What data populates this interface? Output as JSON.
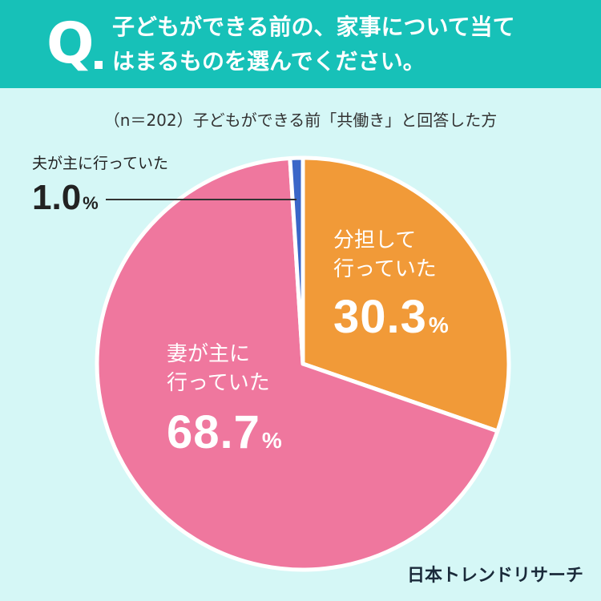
{
  "header": {
    "q_mark": "Q",
    "question_line1": "子どもができる前の、家事について当て",
    "question_line2": "はまるものを選んでください。"
  },
  "subtitle": "（n＝202）子どもができる前「共働き」と回答した方",
  "logo": "日本トレンドリサーチ",
  "colors": {
    "header_bg": "#17c1b8",
    "page_bg": "#d5f7f6",
    "slice_husband": "#3a66c8",
    "slice_shared": "#f19a38",
    "slice_wife": "#ef779e"
  },
  "chart_data": {
    "type": "pie",
    "title": "",
    "start_angle_deg": 0,
    "direction": "clockwise",
    "slices": [
      {
        "label": "分担して行っていた",
        "label_line1": "分担して",
        "label_line2": "行っていた",
        "value": 30.3,
        "value_text": "30.3",
        "unit": "%",
        "color": "#f19a38"
      },
      {
        "label": "妻が主に行っていた",
        "label_line1": "妻が主に",
        "label_line2": "行っていた",
        "value": 68.7,
        "value_text": "68.7",
        "unit": "%",
        "color": "#ef779e"
      },
      {
        "label": "夫が主に行っていた",
        "label_line1": "夫が主に行っていた",
        "label_line2": "",
        "value": 1.0,
        "value_text": "1.0",
        "unit": "%",
        "color": "#3a66c8"
      }
    ]
  }
}
